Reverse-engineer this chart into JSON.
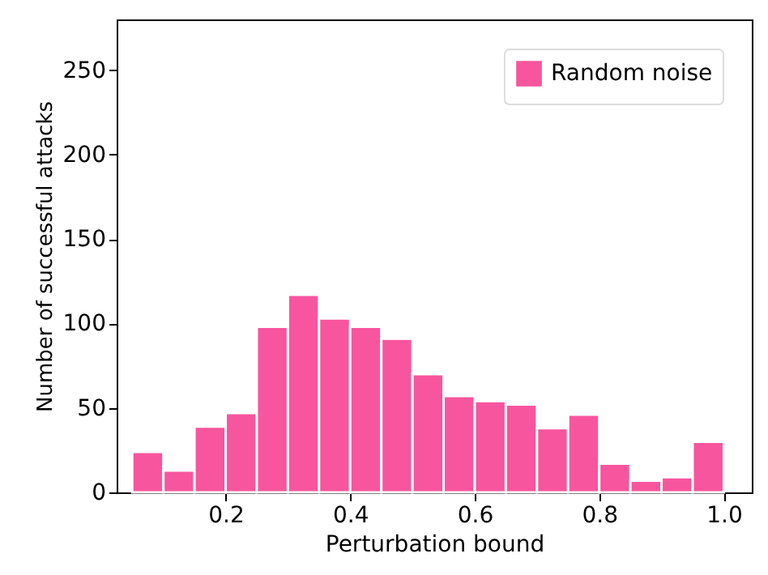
{
  "chart_data": {
    "type": "histogram",
    "xlabel": "Perturbation bound",
    "ylabel": "Number of successful attacks",
    "bins": [
      0.05,
      0.1,
      0.15,
      0.2,
      0.25,
      0.3,
      0.35,
      0.4,
      0.45,
      0.5,
      0.55,
      0.6,
      0.65,
      0.7,
      0.75,
      0.8,
      0.85,
      0.9,
      0.95,
      1.0
    ],
    "series": [
      {
        "name": "Random noise",
        "color": "#f7559d",
        "values": [
          24,
          13,
          39,
          47,
          98,
          117,
          103,
          98,
          91,
          70,
          57,
          54,
          52,
          38,
          46,
          17,
          7,
          9,
          30
        ]
      }
    ],
    "xlim": [
      0.025,
      1.045
    ],
    "xticks": [
      {
        "value": 0.2,
        "label": "0.2"
      },
      {
        "value": 0.4,
        "label": "0.4"
      },
      {
        "value": 0.6,
        "label": "0.6"
      },
      {
        "value": 0.8,
        "label": "0.8"
      },
      {
        "value": 1.0,
        "label": "1.0"
      }
    ],
    "ylim": [
      0,
      280
    ],
    "yticks": [
      0,
      50,
      100,
      150,
      200,
      250
    ],
    "grid": false,
    "legend": "top right"
  }
}
